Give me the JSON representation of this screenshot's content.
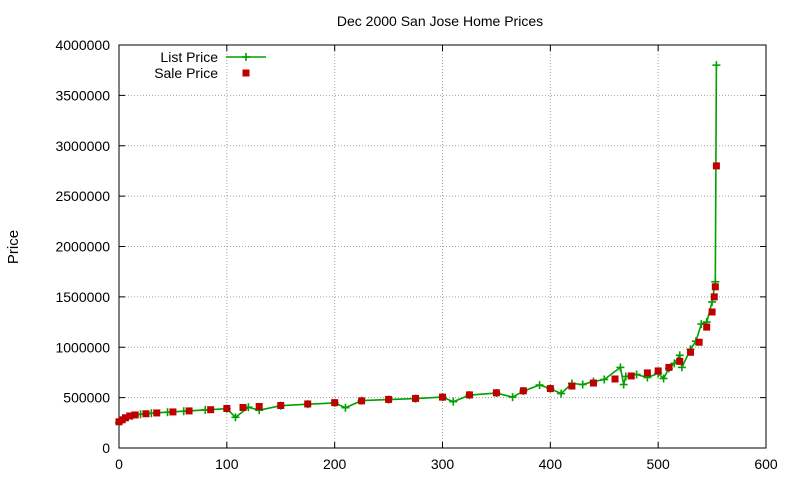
{
  "chart_data": {
    "type": "scatter",
    "title": "Dec 2000 San Jose Home Prices",
    "xlabel": "",
    "ylabel": "Price",
    "xlim": [
      0,
      600
    ],
    "ylim": [
      0,
      4000000
    ],
    "xticks": [
      0,
      100,
      200,
      300,
      400,
      500,
      600
    ],
    "yticks": [
      0,
      500000,
      1000000,
      1500000,
      2000000,
      2500000,
      3000000,
      3500000,
      4000000
    ],
    "grid": true,
    "legend_position": "top-left",
    "series": [
      {
        "name": "List Price",
        "style": "linespoints",
        "marker": "plus",
        "color": "#00a000",
        "points": [
          [
            0,
            250000
          ],
          [
            2,
            270000
          ],
          [
            5,
            290000
          ],
          [
            8,
            305000
          ],
          [
            12,
            320000
          ],
          [
            20,
            335000
          ],
          [
            30,
            345000
          ],
          [
            45,
            355000
          ],
          [
            60,
            365000
          ],
          [
            80,
            378000
          ],
          [
            100,
            390000
          ],
          [
            108,
            305000
          ],
          [
            120,
            405000
          ],
          [
            130,
            375000
          ],
          [
            150,
            420000
          ],
          [
            175,
            435000
          ],
          [
            200,
            448000
          ],
          [
            210,
            400000
          ],
          [
            225,
            470000
          ],
          [
            250,
            480000
          ],
          [
            275,
            490000
          ],
          [
            300,
            505000
          ],
          [
            310,
            460000
          ],
          [
            325,
            525000
          ],
          [
            350,
            545000
          ],
          [
            365,
            505000
          ],
          [
            375,
            565000
          ],
          [
            390,
            625000
          ],
          [
            400,
            590000
          ],
          [
            410,
            540000
          ],
          [
            420,
            640000
          ],
          [
            430,
            630000
          ],
          [
            440,
            660000
          ],
          [
            450,
            680000
          ],
          [
            465,
            800000
          ],
          [
            468,
            630000
          ],
          [
            470,
            710000
          ],
          [
            480,
            730000
          ],
          [
            490,
            700000
          ],
          [
            500,
            740000
          ],
          [
            505,
            690000
          ],
          [
            510,
            790000
          ],
          [
            515,
            840000
          ],
          [
            520,
            920000
          ],
          [
            522,
            800000
          ],
          [
            530,
            980000
          ],
          [
            535,
            1060000
          ],
          [
            540,
            1230000
          ],
          [
            545,
            1250000
          ],
          [
            550,
            1450000
          ],
          [
            553,
            1650000
          ],
          [
            554,
            3800000
          ]
        ]
      },
      {
        "name": "Sale Price",
        "style": "points",
        "marker": "square",
        "color": "#c00000",
        "points": [
          [
            0,
            260000
          ],
          [
            3,
            280000
          ],
          [
            6,
            300000
          ],
          [
            10,
            318000
          ],
          [
            15,
            328000
          ],
          [
            25,
            340000
          ],
          [
            35,
            348000
          ],
          [
            50,
            358000
          ],
          [
            65,
            368000
          ],
          [
            85,
            380000
          ],
          [
            100,
            392000
          ],
          [
            115,
            402000
          ],
          [
            130,
            412000
          ],
          [
            150,
            422000
          ],
          [
            175,
            437000
          ],
          [
            200,
            450000
          ],
          [
            225,
            468000
          ],
          [
            250,
            482000
          ],
          [
            275,
            492000
          ],
          [
            300,
            505000
          ],
          [
            325,
            527000
          ],
          [
            350,
            548000
          ],
          [
            375,
            568000
          ],
          [
            400,
            590000
          ],
          [
            420,
            615000
          ],
          [
            440,
            645000
          ],
          [
            460,
            685000
          ],
          [
            475,
            715000
          ],
          [
            490,
            745000
          ],
          [
            500,
            765000
          ],
          [
            510,
            800000
          ],
          [
            520,
            860000
          ],
          [
            530,
            950000
          ],
          [
            538,
            1050000
          ],
          [
            545,
            1200000
          ],
          [
            550,
            1350000
          ],
          [
            552,
            1500000
          ],
          [
            553,
            1600000
          ],
          [
            554,
            2800000
          ]
        ]
      }
    ]
  }
}
